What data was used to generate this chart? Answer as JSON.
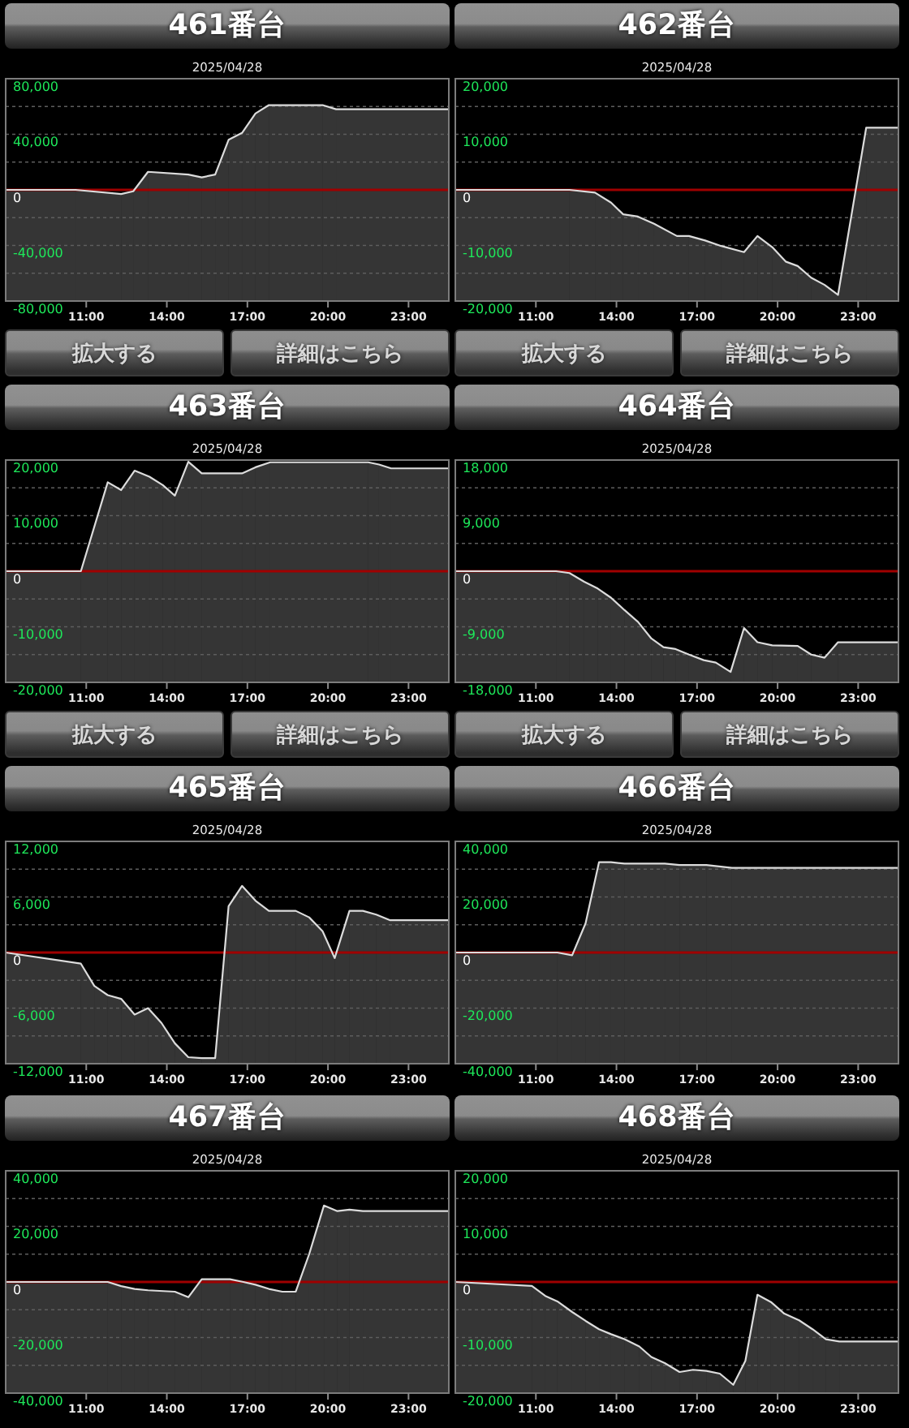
{
  "chart_data": [
    {
      "type": "line",
      "title": "461番台",
      "subtitle": "2025/04/28",
      "x": [
        8,
        10.6,
        12.3,
        12.75,
        13.3,
        14.8,
        15.3,
        15.8,
        16.3,
        16.8,
        17.3,
        17.8,
        19.8,
        20.3,
        24.5
      ],
      "series": [
        {
          "color": "#dcdcdc",
          "values": [
            0,
            0,
            -3000,
            -1000,
            13000,
            11000,
            9000,
            11000,
            36000,
            41000,
            55000,
            61000,
            61000,
            58000,
            58000
          ],
          "upper": [
            0,
            0,
            -3000,
            -1000,
            13000,
            11000,
            9000,
            11000,
            36000,
            41000,
            55000,
            61000,
            61000,
            58000,
            58000
          ],
          "lower": [
            -80000,
            -80000,
            -80000,
            -80000,
            -80000,
            -80000,
            -80000,
            -80000,
            -80000,
            -80000,
            -80000,
            -80000,
            -80000,
            -80000,
            -80000
          ]
        }
      ],
      "xlim": [
        8,
        24.5
      ],
      "xticks": [
        {
          "value": 11,
          "label": "11:00"
        },
        {
          "value": 14,
          "label": "14:00"
        },
        {
          "value": 17,
          "label": "17:00"
        },
        {
          "value": 20,
          "label": "20:00"
        },
        {
          "value": 23,
          "label": "23:00"
        }
      ],
      "ylim": [
        -80000,
        80000
      ],
      "yticks": [
        {
          "value": -80000,
          "label": "-80,000"
        },
        {
          "value": -60000,
          "label": null
        },
        {
          "value": -40000,
          "label": "-40,000"
        },
        {
          "value": -20000,
          "label": null
        },
        {
          "value": 0,
          "label": "0"
        },
        {
          "value": 20000,
          "label": null
        },
        {
          "value": 40000,
          "label": "40,000"
        },
        {
          "value": 60000,
          "label": null
        },
        {
          "value": 80000,
          "label": "80,000"
        }
      ],
      "grid": "y",
      "ref_lines": [
        {
          "axis": "y",
          "value": 0,
          "color": "#a00000"
        }
      ],
      "annotations": [
        "拡大する",
        "詳細はこちら"
      ]
    },
    {
      "type": "line",
      "title": "462番台",
      "subtitle": "2025/04/28",
      "x": [
        8,
        12.25,
        13.2,
        13.8,
        14.25,
        14.8,
        15.4,
        16.25,
        16.7,
        17.3,
        17.9,
        18.75,
        19.25,
        19.8,
        20.3,
        20.75,
        21.25,
        21.75,
        22.25,
        23.3,
        24.5
      ],
      "series": [
        {
          "color": "#dcdcdc",
          "values": [
            0,
            0,
            -500,
            -2300,
            -4400,
            -4800,
            -6100,
            -8300,
            -8300,
            -9100,
            -10100,
            -11200,
            -8300,
            -10300,
            -12900,
            -13700,
            -15800,
            -17100,
            -18900,
            11200,
            11200
          ],
          "upper": [
            0,
            0,
            -500,
            -2300,
            -4400,
            -4800,
            -6100,
            -8300,
            -8300,
            -9100,
            -10100,
            -11200,
            -8300,
            -10300,
            -12900,
            -13700,
            -15800,
            -17100,
            -18900,
            11200,
            11200
          ],
          "lower": [
            -20000,
            -20000,
            -20000,
            -20000,
            -20000,
            -20000,
            -20000,
            -20000,
            -20000,
            -20000,
            -20000,
            -20000,
            -20000,
            -20000,
            -20000,
            -20000,
            -20000,
            -20000,
            -20000,
            -20000,
            -20000
          ]
        }
      ],
      "xlim": [
        8,
        24.5
      ],
      "xticks": [
        {
          "value": 11,
          "label": "11:00"
        },
        {
          "value": 14,
          "label": "14:00"
        },
        {
          "value": 17,
          "label": "17:00"
        },
        {
          "value": 20,
          "label": "20:00"
        },
        {
          "value": 23,
          "label": "23:00"
        }
      ],
      "ylim": [
        -20000,
        20000
      ],
      "yticks": [
        {
          "value": -20000,
          "label": "-20,000"
        },
        {
          "value": -15000,
          "label": null
        },
        {
          "value": -10000,
          "label": "-10,000"
        },
        {
          "value": -5000,
          "label": null
        },
        {
          "value": 0,
          "label": "0"
        },
        {
          "value": 5000,
          "label": null
        },
        {
          "value": 10000,
          "label": "10,000"
        },
        {
          "value": 15000,
          "label": null
        },
        {
          "value": 20000,
          "label": "20,000"
        }
      ],
      "grid": "y",
      "ref_lines": [
        {
          "axis": "y",
          "value": 0,
          "color": "#a00000"
        }
      ],
      "annotations": [
        "拡大する",
        "詳細はこちら"
      ]
    },
    {
      "type": "line",
      "title": "463番台",
      "subtitle": "2025/04/28",
      "x": [
        8,
        10.8,
        11.8,
        12.3,
        12.8,
        13.35,
        13.85,
        14.3,
        14.8,
        15.3,
        16.8,
        17.3,
        17.85,
        21.5,
        21.9,
        22.35,
        24.5
      ],
      "series": [
        {
          "color": "#dcdcdc",
          "values": [
            0,
            0,
            16000,
            14600,
            18100,
            17000,
            15500,
            13600,
            19700,
            17600,
            17600,
            18700,
            19600,
            19600,
            19200,
            18500,
            18500
          ],
          "upper": [
            0,
            0,
            16000,
            14600,
            18100,
            17000,
            15500,
            13600,
            19700,
            17600,
            17600,
            18700,
            19600,
            19600,
            19200,
            18500,
            18500
          ],
          "lower": [
            -20000,
            -20000,
            -20000,
            -20000,
            -20000,
            -20000,
            -20000,
            -20000,
            -20000,
            -20000,
            -20000,
            -20000,
            -20000,
            -20000,
            -20000,
            -20000,
            -20000
          ]
        }
      ],
      "xlim": [
        8,
        24.5
      ],
      "xticks": [
        {
          "value": 11,
          "label": "11:00"
        },
        {
          "value": 14,
          "label": "14:00"
        },
        {
          "value": 17,
          "label": "17:00"
        },
        {
          "value": 20,
          "label": "20:00"
        },
        {
          "value": 23,
          "label": "23:00"
        }
      ],
      "ylim": [
        -20000,
        20000
      ],
      "yticks": [
        {
          "value": -20000,
          "label": "-20,000"
        },
        {
          "value": -15000,
          "label": null
        },
        {
          "value": -10000,
          "label": "-10,000"
        },
        {
          "value": -5000,
          "label": null
        },
        {
          "value": 0,
          "label": "0"
        },
        {
          "value": 5000,
          "label": null
        },
        {
          "value": 10000,
          "label": "10,000"
        },
        {
          "value": 15000,
          "label": null
        },
        {
          "value": 20000,
          "label": "20,000"
        }
      ],
      "grid": "y",
      "ref_lines": [
        {
          "axis": "y",
          "value": 0,
          "color": "#a00000"
        }
      ],
      "annotations": [
        "拡大する",
        "詳細はこちら"
      ]
    },
    {
      "type": "line",
      "title": "464番台",
      "subtitle": "2025/04/28",
      "x": [
        8,
        11.75,
        12.25,
        12.8,
        13.3,
        13.8,
        14.3,
        14.8,
        15.3,
        15.75,
        16.2,
        16.7,
        17.25,
        17.7,
        18.25,
        18.75,
        19.25,
        19.8,
        20.75,
        21.25,
        21.75,
        22.25,
        24.5
      ],
      "series": [
        {
          "color": "#dcdcdc",
          "values": [
            0,
            0,
            -300,
            -1700,
            -2800,
            -4300,
            -6300,
            -8200,
            -10900,
            -12300,
            -12600,
            -13500,
            -14400,
            -14800,
            -16300,
            -9200,
            -11500,
            -12000,
            -12100,
            -13500,
            -14000,
            -11500,
            -11500
          ],
          "upper": [
            0,
            0,
            -300,
            -1700,
            -2800,
            -4300,
            -6300,
            -8200,
            -10900,
            -12300,
            -12600,
            -13500,
            -14400,
            -14800,
            -16300,
            -9200,
            -11500,
            -12000,
            -12100,
            -13500,
            -14000,
            -11500,
            -11500
          ],
          "lower": [
            -18000,
            -18000,
            -18000,
            -18000,
            -18000,
            -18000,
            -18000,
            -18000,
            -18000,
            -18000,
            -18000,
            -18000,
            -18000,
            -18000,
            -18000,
            -18000,
            -18000,
            -18000,
            -18000,
            -18000,
            -18000,
            -18000,
            -18000
          ]
        }
      ],
      "xlim": [
        8,
        24.5
      ],
      "xticks": [
        {
          "value": 11,
          "label": "11:00"
        },
        {
          "value": 14,
          "label": "14:00"
        },
        {
          "value": 17,
          "label": "17:00"
        },
        {
          "value": 20,
          "label": "20:00"
        },
        {
          "value": 23,
          "label": "23:00"
        }
      ],
      "ylim": [
        -18000,
        18000
      ],
      "yticks": [
        {
          "value": -18000,
          "label": "-18,000"
        },
        {
          "value": -13500,
          "label": null
        },
        {
          "value": -9000,
          "label": "-9,000"
        },
        {
          "value": -4500,
          "label": null
        },
        {
          "value": 0,
          "label": "0"
        },
        {
          "value": 4500,
          "label": null
        },
        {
          "value": 9000,
          "label": "9,000"
        },
        {
          "value": 13500,
          "label": null
        },
        {
          "value": 18000,
          "label": "18,000"
        }
      ],
      "grid": "y",
      "ref_lines": [
        {
          "axis": "y",
          "value": 0,
          "color": "#a00000"
        }
      ],
      "annotations": [
        "拡大する",
        "詳細はこちら"
      ]
    },
    {
      "type": "line",
      "title": "465番台",
      "subtitle": "2025/04/28",
      "x": [
        8,
        10.8,
        11.3,
        11.8,
        12.3,
        12.8,
        13.3,
        13.8,
        14.3,
        14.8,
        15.3,
        15.8,
        16.3,
        16.8,
        17.3,
        17.8,
        18.8,
        19.3,
        19.8,
        20.25,
        20.8,
        21.3,
        21.8,
        22.3,
        24.5
      ],
      "series": [
        {
          "color": "#dcdcdc",
          "values": [
            0,
            -1200,
            -3600,
            -4600,
            -5000,
            -6700,
            -6000,
            -7600,
            -9800,
            -11300,
            -11400,
            -11400,
            5000,
            7200,
            5600,
            4500,
            4500,
            3800,
            2300,
            -600,
            4500,
            4500,
            4100,
            3500,
            3500
          ],
          "upper": [
            0,
            -1200,
            -3600,
            -4600,
            -5000,
            -6700,
            -6000,
            -7600,
            -9800,
            -11300,
            -11400,
            -11400,
            5000,
            7200,
            5600,
            4500,
            4500,
            3800,
            2300,
            -600,
            4500,
            4500,
            4100,
            3500,
            3500
          ],
          "lower": [
            -12000,
            -12000,
            -12000,
            -12000,
            -12000,
            -12000,
            -12000,
            -12000,
            -12000,
            -12000,
            -12000,
            -12000,
            -12000,
            -12000,
            -12000,
            -12000,
            -12000,
            -12000,
            -12000,
            -12000,
            -12000,
            -12000,
            -12000,
            -12000,
            -12000
          ]
        }
      ],
      "xlim": [
        8,
        24.5
      ],
      "xticks": [
        {
          "value": 11,
          "label": "11:00"
        },
        {
          "value": 14,
          "label": "14:00"
        },
        {
          "value": 17,
          "label": "17:00"
        },
        {
          "value": 20,
          "label": "20:00"
        },
        {
          "value": 23,
          "label": "23:00"
        }
      ],
      "ylim": [
        -12000,
        12000
      ],
      "yticks": [
        {
          "value": -12000,
          "label": "-12,000"
        },
        {
          "value": -9000,
          "label": null
        },
        {
          "value": -6000,
          "label": "-6,000"
        },
        {
          "value": -3000,
          "label": null
        },
        {
          "value": 0,
          "label": "0"
        },
        {
          "value": 3000,
          "label": null
        },
        {
          "value": 6000,
          "label": "6,000"
        },
        {
          "value": 9000,
          "label": null
        },
        {
          "value": 12000,
          "label": "12,000"
        }
      ],
      "grid": "y",
      "ref_lines": [
        {
          "axis": "y",
          "value": 0,
          "color": "#a00000"
        }
      ]
    },
    {
      "type": "line",
      "title": "466番台",
      "subtitle": "2025/04/28",
      "x": [
        8,
        11.8,
        12.35,
        12.85,
        13.35,
        13.8,
        14.3,
        15.8,
        16.35,
        17.35,
        18.3,
        24.5
      ],
      "series": [
        {
          "color": "#dcdcdc",
          "values": [
            0,
            0,
            -1000,
            10500,
            32500,
            32500,
            32000,
            32000,
            31500,
            31500,
            30500,
            30500
          ],
          "upper": [
            0,
            0,
            -1000,
            10500,
            32500,
            32500,
            32000,
            32000,
            31500,
            31500,
            30500,
            30500
          ],
          "lower": [
            -40000,
            -40000,
            -40000,
            -40000,
            -40000,
            -40000,
            -40000,
            -40000,
            -40000,
            -40000,
            -40000,
            -40000
          ]
        }
      ],
      "xlim": [
        8,
        24.5
      ],
      "xticks": [
        {
          "value": 11,
          "label": "11:00"
        },
        {
          "value": 14,
          "label": "14:00"
        },
        {
          "value": 17,
          "label": "17:00"
        },
        {
          "value": 20,
          "label": "20:00"
        },
        {
          "value": 23,
          "label": "23:00"
        }
      ],
      "ylim": [
        -40000,
        40000
      ],
      "yticks": [
        {
          "value": -40000,
          "label": "-40,000"
        },
        {
          "value": -30000,
          "label": null
        },
        {
          "value": -20000,
          "label": "-20,000"
        },
        {
          "value": -10000,
          "label": null
        },
        {
          "value": 0,
          "label": "0"
        },
        {
          "value": 10000,
          "label": null
        },
        {
          "value": 20000,
          "label": "20,000"
        },
        {
          "value": 30000,
          "label": null
        },
        {
          "value": 40000,
          "label": "40,000"
        }
      ],
      "grid": "y",
      "ref_lines": [
        {
          "axis": "y",
          "value": 0,
          "color": "#a00000"
        }
      ]
    },
    {
      "type": "line",
      "title": "467番台",
      "subtitle": "2025/04/28",
      "x": [
        8,
        11.8,
        12.3,
        12.8,
        13.3,
        14.3,
        14.8,
        15.3,
        16.35,
        16.85,
        17.3,
        17.8,
        18.3,
        18.8,
        19.3,
        19.85,
        20.35,
        20.8,
        21.3,
        24.5
      ],
      "series": [
        {
          "color": "#dcdcdc",
          "values": [
            0,
            0,
            -1500,
            -2500,
            -3000,
            -3500,
            -5500,
            1000,
            1000,
            0,
            -1000,
            -2500,
            -3500,
            -3500,
            10000,
            27500,
            25500,
            26000,
            25500,
            25500
          ],
          "upper": [
            0,
            0,
            -1500,
            -2500,
            -3000,
            -3500,
            -5500,
            1000,
            1000,
            0,
            -1000,
            -2500,
            -3500,
            -3500,
            10000,
            27500,
            25500,
            26000,
            25500,
            25500
          ],
          "lower": [
            -40000,
            -40000,
            -40000,
            -40000,
            -40000,
            -40000,
            -40000,
            -40000,
            -40000,
            -40000,
            -40000,
            -40000,
            -40000,
            -40000,
            -40000,
            -40000,
            -40000,
            -40000,
            -40000,
            -40000
          ]
        }
      ],
      "xlim": [
        8,
        24.5
      ],
      "xticks": [
        {
          "value": 11,
          "label": "11:00"
        },
        {
          "value": 14,
          "label": "14:00"
        },
        {
          "value": 17,
          "label": "17:00"
        },
        {
          "value": 20,
          "label": "20:00"
        },
        {
          "value": 23,
          "label": "23:00"
        }
      ],
      "ylim": [
        -40000,
        40000
      ],
      "yticks": [
        {
          "value": -40000,
          "label": "-40,000"
        },
        {
          "value": -30000,
          "label": null
        },
        {
          "value": -20000,
          "label": "-20,000"
        },
        {
          "value": -10000,
          "label": null
        },
        {
          "value": 0,
          "label": "0"
        },
        {
          "value": 10000,
          "label": null
        },
        {
          "value": 20000,
          "label": "20,000"
        },
        {
          "value": 30000,
          "label": null
        },
        {
          "value": 40000,
          "label": "40,000"
        }
      ],
      "grid": "y",
      "ref_lines": [
        {
          "axis": "y",
          "value": 0,
          "color": "#a00000"
        }
      ]
    },
    {
      "type": "line",
      "title": "468番台",
      "subtitle": "2025/04/28",
      "x": [
        8,
        10.85,
        11.35,
        11.8,
        12.35,
        12.85,
        13.35,
        13.8,
        14.3,
        14.85,
        15.3,
        15.8,
        16.35,
        16.85,
        17.35,
        17.85,
        18.35,
        18.8,
        19.25,
        19.75,
        20.25,
        20.8,
        21.3,
        21.8,
        22.3,
        24.5
      ],
      "series": [
        {
          "color": "#dcdcdc",
          "values": [
            0,
            -700,
            -2500,
            -3500,
            -5400,
            -7000,
            -8500,
            -9400,
            -10300,
            -11600,
            -13500,
            -14600,
            -16200,
            -15800,
            -16000,
            -16500,
            -18500,
            -14200,
            -2300,
            -3600,
            -5700,
            -6900,
            -8500,
            -10300,
            -10700,
            -10700
          ],
          "upper": [
            0,
            -700,
            -2500,
            -3500,
            -5400,
            -7000,
            -8500,
            -9400,
            -10300,
            -11600,
            -13500,
            -14600,
            -16200,
            -15800,
            -16000,
            -16500,
            -18500,
            -14200,
            -2300,
            -3600,
            -5700,
            -6900,
            -8500,
            -10300,
            -10700,
            -10700
          ],
          "lower": [
            -20000,
            -20000,
            -20000,
            -20000,
            -20000,
            -20000,
            -20000,
            -20000,
            -20000,
            -20000,
            -20000,
            -20000,
            -20000,
            -20000,
            -20000,
            -20000,
            -20000,
            -20000,
            -20000,
            -20000,
            -20000,
            -20000,
            -20000,
            -20000,
            -20000,
            -20000
          ]
        }
      ],
      "xlim": [
        8,
        24.5
      ],
      "xticks": [
        {
          "value": 11,
          "label": "11:00"
        },
        {
          "value": 14,
          "label": "14:00"
        },
        {
          "value": 17,
          "label": "17:00"
        },
        {
          "value": 20,
          "label": "20:00"
        },
        {
          "value": 23,
          "label": "23:00"
        }
      ],
      "ylim": [
        -20000,
        20000
      ],
      "yticks": [
        {
          "value": -20000,
          "label": "-20,000"
        },
        {
          "value": -15000,
          "label": null
        },
        {
          "value": -10000,
          "label": "-10,000"
        },
        {
          "value": -5000,
          "label": null
        },
        {
          "value": 0,
          "label": "0"
        },
        {
          "value": 5000,
          "label": null
        },
        {
          "value": 10000,
          "label": "10,000"
        },
        {
          "value": 15000,
          "label": null
        },
        {
          "value": 20000,
          "label": "20,000"
        }
      ],
      "grid": "y",
      "ref_lines": [
        {
          "axis": "y",
          "value": 0,
          "color": "#a00000"
        }
      ]
    }
  ]
}
